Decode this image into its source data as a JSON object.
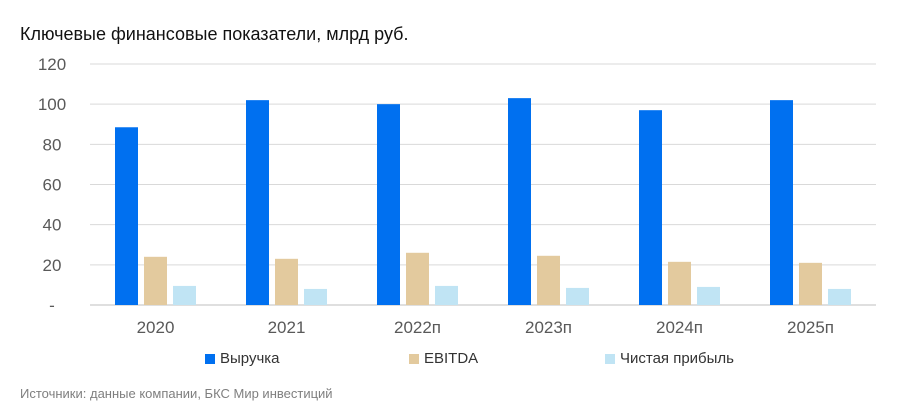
{
  "title": "Ключевые финансовые показатели, млрд руб.",
  "source": "Источники: данные компании, БКС Мир инвестиций",
  "chart_data": {
    "type": "bar",
    "title": "Ключевые финансовые показатели, млрд руб.",
    "xlabel": "",
    "ylabel": "",
    "categories": [
      "2020",
      "2021",
      "2022п",
      "2023п",
      "2024п",
      "2025п"
    ],
    "series": [
      {
        "name": "Выручка",
        "color": "#0070f0",
        "values": [
          88.5,
          102,
          100,
          103,
          97,
          102
        ]
      },
      {
        "name": "EBITDA",
        "color": "#e3ca9e",
        "values": [
          24,
          23,
          26,
          24.5,
          21.5,
          21
        ]
      },
      {
        "name": "Чистая прибыль",
        "color": "#c0e4f4",
        "values": [
          9.5,
          8,
          9.5,
          8.5,
          9,
          8
        ]
      }
    ],
    "ylim": [
      0,
      120
    ],
    "yticks": [
      0,
      20,
      40,
      60,
      80,
      100,
      120
    ],
    "ytick_labels": [
      "-",
      "20",
      "40",
      "60",
      "80",
      "100",
      "120"
    ],
    "grid": true,
    "legend_position": "bottom"
  }
}
